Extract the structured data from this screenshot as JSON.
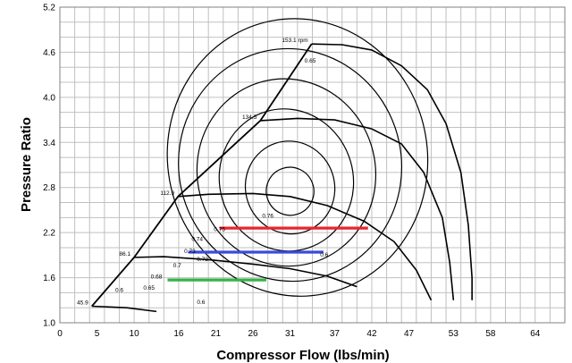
{
  "chart_data": {
    "type": "line",
    "xlabel": "Compressor Flow (lbs/min)",
    "ylabel": "Pressure Ratio",
    "xlim": [
      0,
      68
    ],
    "ylim": [
      1.0,
      5.2
    ],
    "x_ticks": [
      0,
      5,
      10,
      16,
      21,
      26,
      31,
      37,
      42,
      47,
      53,
      58,
      64
    ],
    "y_ticks": [
      "1.0",
      "1.6",
      "2.2",
      "2.8",
      "3.4",
      "4.0",
      "4.6",
      "5.2"
    ],
    "grid": true,
    "speed_lines": [
      {
        "label": "45.9",
        "points": [
          [
            4.3,
            1.22
          ],
          [
            9,
            1.2
          ],
          [
            13,
            1.15
          ]
        ]
      },
      {
        "label": "86.1",
        "points": [
          [
            10,
            1.87
          ],
          [
            14,
            1.88
          ],
          [
            20,
            1.84
          ],
          [
            26,
            1.78
          ],
          [
            31,
            1.72
          ],
          [
            36,
            1.62
          ],
          [
            40,
            1.48
          ]
        ]
      },
      {
        "label": "112.9",
        "points": [
          [
            15.9,
            2.68
          ],
          [
            20,
            2.71
          ],
          [
            26,
            2.72
          ],
          [
            31,
            2.68
          ],
          [
            36,
            2.56
          ],
          [
            41,
            2.35
          ],
          [
            45,
            2.08
          ],
          [
            48,
            1.7
          ],
          [
            50,
            1.3
          ]
        ]
      },
      {
        "label": "134.5",
        "points": [
          [
            27,
            3.69
          ],
          [
            32,
            3.72
          ],
          [
            37,
            3.7
          ],
          [
            42,
            3.58
          ],
          [
            46,
            3.38
          ],
          [
            49,
            3.0
          ],
          [
            51.5,
            2.4
          ],
          [
            52.5,
            1.8
          ],
          [
            53,
            1.3
          ]
        ]
      },
      {
        "label": "153.1 rpm",
        "points": [
          [
            33.9,
            4.71
          ],
          [
            38,
            4.7
          ],
          [
            42,
            4.63
          ],
          [
            46,
            4.42
          ],
          [
            49.5,
            4.1
          ],
          [
            52,
            3.65
          ],
          [
            54,
            3.0
          ],
          [
            55,
            2.3
          ],
          [
            55.5,
            1.6
          ],
          [
            55.5,
            1.3
          ]
        ]
      }
    ],
    "surge_line": [
      [
        4.3,
        1.22
      ],
      [
        10,
        1.87
      ],
      [
        15.9,
        2.68
      ],
      [
        27,
        3.69
      ],
      [
        33.9,
        4.71
      ]
    ],
    "efficiency_islands": [
      {
        "label": "0.76",
        "center": [
          31,
          2.75
        ],
        "rx": 3.2,
        "ry": 0.32,
        "angle": 20
      },
      {
        "label": "",
        "center": [
          31,
          2.8
        ],
        "rx": 6,
        "ry": 0.62,
        "angle": 18
      },
      {
        "label": "",
        "center": [
          30.5,
          2.9
        ],
        "rx": 9,
        "ry": 0.95,
        "angle": 16
      },
      {
        "label": "",
        "center": [
          30.5,
          3.0
        ],
        "rx": 12,
        "ry": 1.25,
        "angle": 14
      },
      {
        "label": "",
        "center": [
          31,
          3.1
        ],
        "rx": 15,
        "ry": 1.55,
        "angle": 12
      },
      {
        "label": "",
        "center": [
          32,
          3.2
        ],
        "rx": 17.5,
        "ry": 1.85,
        "angle": 10
      }
    ],
    "efficiency_labels": [
      {
        "text": "0.65",
        "x": 33.7,
        "y": 4.46
      },
      {
        "text": "0.76",
        "x": 28,
        "y": 2.4
      },
      {
        "text": "0.75",
        "x": 21.5,
        "y": 2.22
      },
      {
        "text": "0.74",
        "x": 18.5,
        "y": 2.09
      },
      {
        "text": "0.73",
        "x": 17.5,
        "y": 1.93
      },
      {
        "text": "0.72",
        "x": 19.2,
        "y": 1.82
      },
      {
        "text": "0.7",
        "x": 15.8,
        "y": 1.74
      },
      {
        "text": "0.68",
        "x": 13,
        "y": 1.59
      },
      {
        "text": "0.65",
        "x": 12,
        "y": 1.44
      },
      {
        "text": "0.6",
        "x": 8,
        "y": 1.41
      },
      {
        "text": "0.6",
        "x": 19,
        "y": 1.25
      },
      {
        "text": "0.6",
        "x": 35.6,
        "y": 1.88
      }
    ],
    "series": [
      {
        "color": "#e8262b",
        "points": [
          [
            21.5,
            2.26
          ],
          [
            41.5,
            2.26
          ]
        ]
      },
      {
        "color": "#3a4bd6",
        "points": [
          [
            17.3,
            1.94
          ],
          [
            35.5,
            1.94
          ]
        ]
      },
      {
        "color": "#35b24a",
        "points": [
          [
            14.5,
            1.57
          ],
          [
            27.8,
            1.57
          ]
        ]
      }
    ]
  }
}
